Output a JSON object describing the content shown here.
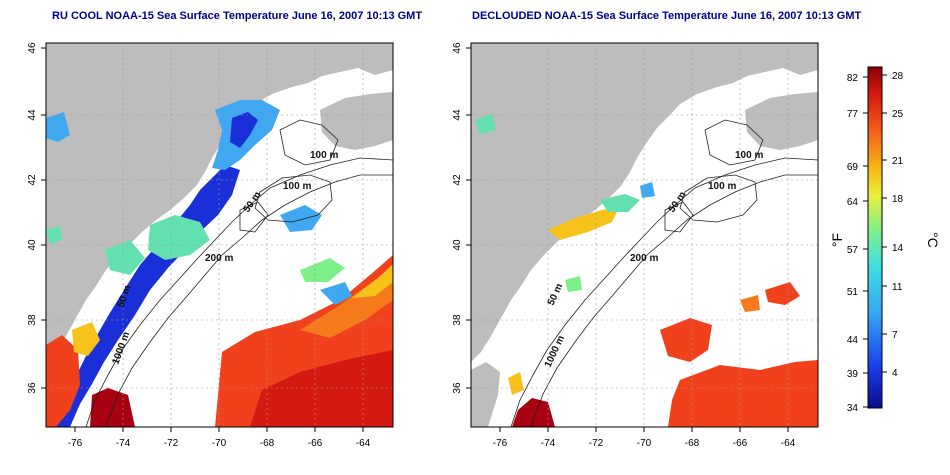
{
  "left_map": {
    "title": "RU COOL NOAA-15 Sea Surface Temperature June 16, 2007 10:13 GMT"
  },
  "right_map": {
    "title": "DECLOUDED NOAA-15 Sea Surface Temperature June 16, 2007 10:13 GMT"
  },
  "axes": {
    "lon_ticks": [
      "-76",
      "-74",
      "-72",
      "-70",
      "-68",
      "-66",
      "-64"
    ],
    "lat_ticks": [
      "46",
      "44",
      "42",
      "40",
      "38",
      "36"
    ]
  },
  "contour_labels_left": [
    "100 m",
    "100 m",
    "50 m",
    "200 m",
    "50 m",
    "1000 m"
  ],
  "contour_labels_right": [
    "100 m",
    "100 m",
    "50 m",
    "200 m",
    "50 m",
    "1000 m"
  ],
  "colorbar": {
    "unit_f": "°F",
    "unit_c": "°C",
    "f_ticks": [
      "82",
      "77",
      "69",
      "64",
      "57",
      "51",
      "44",
      "39",
      "34"
    ],
    "c_ticks": [
      "28",
      "25",
      "21",
      "18",
      "14",
      "11",
      "7",
      "4"
    ]
  },
  "colors": {
    "land": "#bdbdbd",
    "title": "#00008b",
    "cold": "#1a2fd8",
    "cool": "#3fa8f0",
    "mild": "#63e0b0",
    "warm": "#f7c21a",
    "hot": "#f0401c",
    "hottest": "#a80010"
  }
}
